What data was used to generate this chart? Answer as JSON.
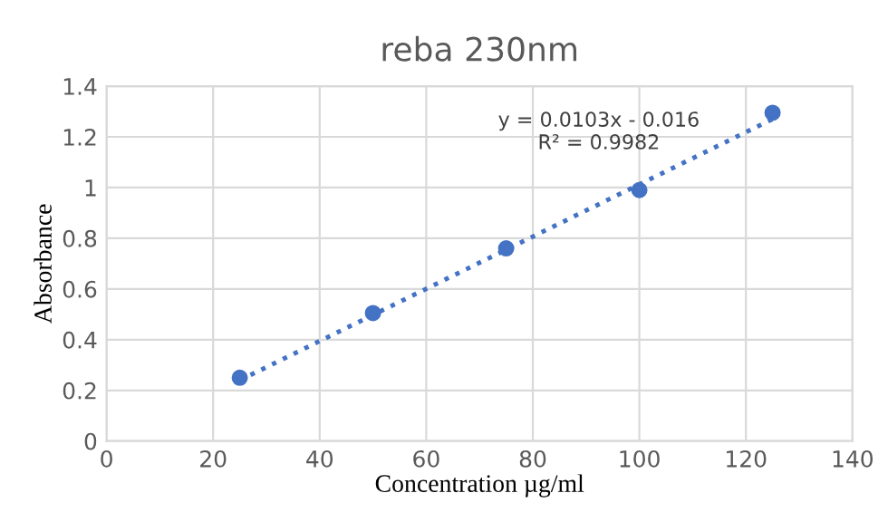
{
  "chart_data": {
    "type": "scatter",
    "title": "reba 230nm",
    "xlabel": "Concentration µg/ml",
    "ylabel": "Absorbance",
    "x": [
      25,
      50,
      75,
      100,
      125
    ],
    "series": [
      {
        "color": "#4472c4",
        "values": [
          0.25,
          0.505,
          0.76,
          0.99,
          1.295
        ],
        "marker": "circle"
      },
      {
        "type": "line",
        "color": "#4472c4",
        "x": [
          25,
          125
        ],
        "values": [
          0.24,
          1.27
        ],
        "line_style": "dotted",
        "marker": "none"
      }
    ],
    "annotations": [
      "y = 0.0103x - 0.016\nR² = 0.9982"
    ],
    "xlim": [
      0,
      140
    ],
    "xticks": [
      0,
      20,
      40,
      60,
      80,
      100,
      120,
      140
    ],
    "ylim": [
      0,
      1.4
    ],
    "yticks": [
      0,
      0.2,
      0.4,
      0.6,
      0.8,
      1,
      1.2,
      1.4
    ],
    "grid": true,
    "legend": false
  }
}
